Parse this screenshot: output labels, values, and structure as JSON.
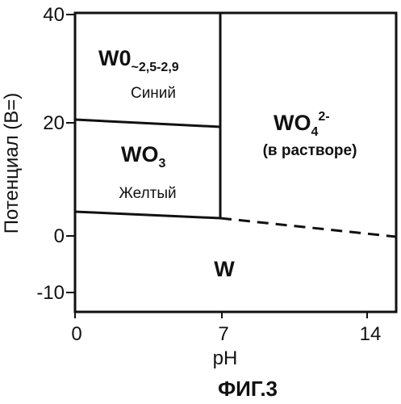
{
  "axes": {
    "x_label": "pH",
    "y_label": "Потенциал (В=)",
    "x_ticks": [
      "0",
      "7",
      "14"
    ],
    "y_ticks": [
      "40",
      "20",
      "0",
      "-10"
    ]
  },
  "regions": {
    "w0": {
      "main": "W0",
      "subscript": "~2,5-2,9",
      "caption": "Синий"
    },
    "wo3": {
      "main": "WO",
      "subscript": "3",
      "caption": "Желтый"
    },
    "wo4": {
      "main": "WO",
      "subscript": "4",
      "superscript": "2-",
      "caption": "(в растворе)"
    },
    "w": {
      "main": "W"
    }
  },
  "figure_label": "ФИГ.3"
}
